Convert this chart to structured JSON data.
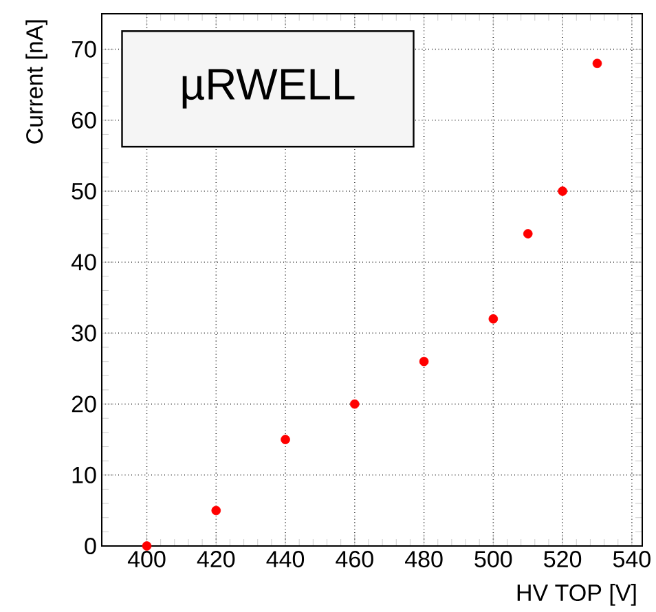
{
  "chart_data": {
    "type": "scatter",
    "title": "µRWELL",
    "xlabel": "HV TOP [V]",
    "ylabel": "Current [nA]",
    "x": [
      400,
      420,
      440,
      460,
      480,
      500,
      510,
      520,
      530
    ],
    "series": [
      {
        "color": "#ff0000",
        "values": [
          0,
          5,
          15,
          20,
          26,
          32,
          44,
          50,
          68
        ]
      }
    ],
    "xlim": [
      387,
      543
    ],
    "ylim": [
      0,
      75
    ],
    "xticks": [
      400,
      420,
      440,
      460,
      480,
      500,
      520,
      540
    ],
    "yticks": [
      0,
      10,
      20,
      30,
      40,
      50,
      60,
      70
    ],
    "grid": true,
    "marker": "circle"
  }
}
